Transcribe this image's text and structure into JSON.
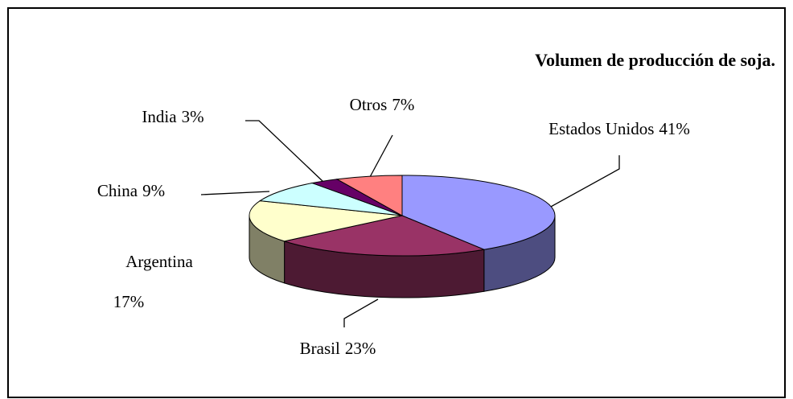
{
  "chart_data": {
    "type": "pie3d",
    "title": "Volumen de producción de soja.",
    "categories": [
      "Estados Unidos",
      "Brasil",
      "Argentina",
      "China",
      "India",
      "Otros"
    ],
    "values": [
      41,
      23,
      17,
      9,
      3,
      7
    ],
    "value_labels": [
      "41%",
      "23%",
      "17%",
      "9%",
      "3%",
      "7%"
    ],
    "colors": [
      "#9999ff",
      "#993366",
      "#ffffcc",
      "#ccffff",
      "#660066",
      "#ff8080"
    ]
  }
}
